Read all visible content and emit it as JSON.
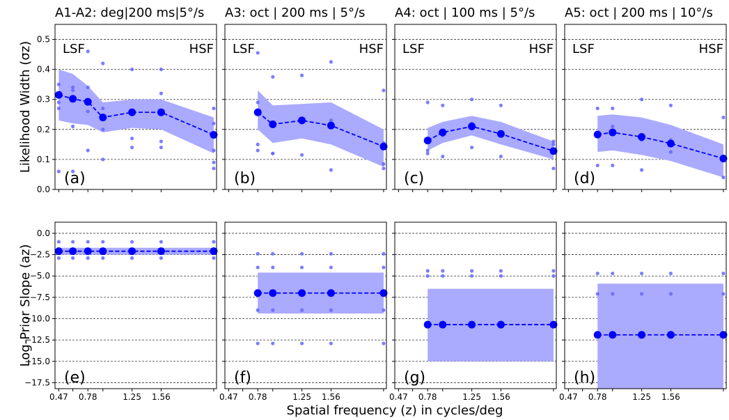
{
  "chart_data": {
    "type": "line",
    "xlabel": "Spatial frequency (z) in cycles/deg",
    "x_tick_labels": [
      "0.47",
      "0.78",
      "1.25",
      "1.56"
    ],
    "x_ticks": [
      0.47,
      0.78,
      1.25,
      1.56
    ],
    "xlim": [
      0.43,
      2.15
    ],
    "grid": "horizontal dashed",
    "colors": {
      "series": "#0000ff",
      "band": "#aaaaff",
      "raw_points": "#6666ff"
    },
    "rows": [
      {
        "ylabel": "Likelihood Width (σz)",
        "ylim": [
          0,
          0.55
        ],
        "y_tick_labels": [
          "0.0",
          "0.1",
          "0.2",
          "0.3",
          "0.4",
          "0.5"
        ],
        "y_ticks": [
          0,
          0.1,
          0.2,
          0.3,
          0.4,
          0.5
        ],
        "corner_labels": [
          "LSF",
          "HSF"
        ]
      },
      {
        "ylabel": "Log-Prior Slope (az)",
        "ylim": [
          -18.2,
          1.3
        ],
        "y_tick_labels": [
          "0.0",
          "−2.5",
          "−5.0",
          "−7.5",
          "−10.0",
          "−12.5",
          "−15.0",
          "−17.5"
        ],
        "y_ticks": [
          0,
          -2.5,
          -5,
          -7.5,
          -10,
          -12.5,
          -15,
          -17.5
        ]
      }
    ],
    "panels": [
      {
        "title": "A1-A2: deg|200 ms|5°/s",
        "label": "(a)",
        "row": 0,
        "col": 0,
        "x": [
          0.47,
          0.62,
          0.78,
          0.94,
          1.25,
          1.56,
          2.12
        ],
        "mean": [
          0.315,
          0.302,
          0.292,
          0.24,
          0.257,
          0.257,
          0.182
        ],
        "lower": [
          0.23,
          0.22,
          0.215,
          0.19,
          0.205,
          0.2,
          0.12
        ],
        "upper": [
          0.4,
          0.385,
          0.345,
          0.29,
          0.3,
          0.3,
          0.24
        ],
        "raw": [
          [
            0.47,
            0.35
          ],
          [
            0.47,
            0.29
          ],
          [
            0.47,
            0.27
          ],
          [
            0.47,
            0.06
          ],
          [
            0.62,
            0.34
          ],
          [
            0.62,
            0.33
          ],
          [
            0.62,
            0.21
          ],
          [
            0.62,
            0.06
          ],
          [
            0.78,
            0.46
          ],
          [
            0.78,
            0.34
          ],
          [
            0.78,
            0.29
          ],
          [
            0.78,
            0.26
          ],
          [
            0.78,
            0.13
          ],
          [
            0.94,
            0.42
          ],
          [
            0.94,
            0.27
          ],
          [
            0.94,
            0.2
          ],
          [
            0.94,
            0.1
          ],
          [
            1.25,
            0.4
          ],
          [
            1.25,
            0.26
          ],
          [
            1.25,
            0.17
          ],
          [
            1.25,
            0.14
          ],
          [
            1.56,
            0.4
          ],
          [
            1.56,
            0.32
          ],
          [
            1.56,
            0.16
          ],
          [
            1.56,
            0.14
          ],
          [
            2.12,
            0.27
          ],
          [
            2.12,
            0.22
          ],
          [
            2.12,
            0.13
          ],
          [
            2.12,
            0.09
          ],
          [
            2.12,
            0.07
          ]
        ]
      },
      {
        "title": "A3:  oct | 200 ms |  5°/s",
        "label": "(b)",
        "row": 0,
        "col": 1,
        "x": [
          0.78,
          0.94,
          1.25,
          1.56,
          2.12
        ],
        "mean": [
          0.257,
          0.217,
          0.23,
          0.213,
          0.143
        ],
        "lower": [
          0.2,
          0.155,
          0.17,
          0.15,
          0.075
        ],
        "upper": [
          0.33,
          0.28,
          0.285,
          0.29,
          0.2
        ],
        "raw": [
          [
            0.78,
            0.455
          ],
          [
            0.78,
            0.29
          ],
          [
            0.78,
            0.15
          ],
          [
            0.78,
            0.13
          ],
          [
            0.94,
            0.375
          ],
          [
            0.94,
            0.215
          ],
          [
            0.94,
            0.12
          ],
          [
            0.94,
            0.12
          ],
          [
            1.25,
            0.38
          ],
          [
            1.25,
            0.235
          ],
          [
            1.25,
            0.115
          ],
          [
            1.56,
            0.425
          ],
          [
            1.56,
            0.23
          ],
          [
            1.56,
            0.065
          ],
          [
            2.12,
            0.33
          ],
          [
            2.12,
            0.155
          ],
          [
            2.12,
            0.085
          ],
          [
            2.12,
            0.07
          ]
        ]
      },
      {
        "title": "A4:  oct | 100 ms |  5°/s",
        "label": "(c)",
        "row": 0,
        "col": 2,
        "x": [
          0.78,
          0.94,
          1.25,
          1.56,
          2.12
        ],
        "mean": [
          0.163,
          0.19,
          0.21,
          0.185,
          0.128
        ],
        "lower": [
          0.13,
          0.155,
          0.18,
          0.15,
          0.1
        ],
        "upper": [
          0.205,
          0.225,
          0.245,
          0.225,
          0.16
        ],
        "raw": [
          [
            0.78,
            0.29
          ],
          [
            0.78,
            0.13
          ],
          [
            0.78,
            0.12
          ],
          [
            0.94,
            0.28
          ],
          [
            0.94,
            0.18
          ],
          [
            0.94,
            0.11
          ],
          [
            1.25,
            0.3
          ],
          [
            1.25,
            0.22
          ],
          [
            1.25,
            0.14
          ],
          [
            1.56,
            0.28
          ],
          [
            1.56,
            0.19
          ],
          [
            1.56,
            0.11
          ],
          [
            2.12,
            0.16
          ],
          [
            2.12,
            0.15
          ],
          [
            2.12,
            0.07
          ]
        ]
      },
      {
        "title": "A5:  oct | 200 ms | 10°/s",
        "label": "(d)",
        "row": 0,
        "col": 3,
        "x": [
          0.78,
          0.94,
          1.25,
          1.56,
          2.12
        ],
        "mean": [
          0.183,
          0.19,
          0.175,
          0.153,
          0.103
        ],
        "lower": [
          0.125,
          0.13,
          0.115,
          0.095,
          0.04
        ],
        "upper": [
          0.245,
          0.25,
          0.24,
          0.215,
          0.15
        ],
        "raw": [
          [
            0.78,
            0.27
          ],
          [
            0.78,
            0.08
          ],
          [
            0.94,
            0.27
          ],
          [
            0.94,
            0.21
          ],
          [
            0.94,
            0.08
          ],
          [
            1.25,
            0.3
          ],
          [
            1.25,
            0.165
          ],
          [
            1.25,
            0.065
          ],
          [
            1.56,
            0.28
          ],
          [
            1.56,
            0.165
          ],
          [
            1.56,
            0.125
          ],
          [
            2.12,
            0.24
          ],
          [
            2.12,
            0.11
          ],
          [
            2.12,
            0.04
          ]
        ]
      },
      {
        "title": "",
        "label": "(e)",
        "row": 1,
        "col": 0,
        "x": [
          0.47,
          0.62,
          0.78,
          0.94,
          1.25,
          1.56,
          2.12
        ],
        "mean": [
          -2.1,
          -2.1,
          -2.1,
          -2.1,
          -2.1,
          -2.1,
          -2.1
        ],
        "lower": [
          -2.5,
          -2.5,
          -2.5,
          -2.5,
          -2.5,
          -2.5,
          -2.5
        ],
        "upper": [
          -1.7,
          -1.7,
          -1.7,
          -1.7,
          -1.7,
          -1.7,
          -1.7
        ],
        "raw": [
          [
            0.47,
            -1.0
          ],
          [
            0.47,
            -2.9
          ],
          [
            0.62,
            -1.0
          ],
          [
            0.62,
            -2.9
          ],
          [
            0.78,
            -1.0
          ],
          [
            0.78,
            -2.9
          ],
          [
            0.94,
            -1.0
          ],
          [
            0.94,
            -2.9
          ],
          [
            1.25,
            -1.0
          ],
          [
            1.25,
            -2.9
          ],
          [
            1.56,
            -1.0
          ],
          [
            1.56,
            -2.9
          ],
          [
            2.12,
            -1.0
          ],
          [
            2.12,
            -2.9
          ]
        ]
      },
      {
        "title": "",
        "label": "(f)",
        "row": 1,
        "col": 1,
        "x": [
          0.78,
          0.94,
          1.25,
          1.56,
          2.12
        ],
        "mean": [
          -7.0,
          -7.0,
          -7.0,
          -7.0,
          -7.0
        ],
        "lower": [
          -9.4,
          -9.4,
          -9.4,
          -9.4,
          -9.4
        ],
        "upper": [
          -4.6,
          -4.6,
          -4.6,
          -4.6,
          -4.6
        ],
        "raw": [
          [
            0.78,
            -2.4
          ],
          [
            0.78,
            -4.0
          ],
          [
            0.78,
            -7.0
          ],
          [
            0.78,
            -9.0
          ],
          [
            0.78,
            -12.9
          ],
          [
            0.94,
            -2.4
          ],
          [
            0.94,
            -4.0
          ],
          [
            0.94,
            -9.0
          ],
          [
            0.94,
            -12.9
          ],
          [
            1.25,
            -2.4
          ],
          [
            1.25,
            -4.0
          ],
          [
            1.25,
            -9.0
          ],
          [
            1.25,
            -12.9
          ],
          [
            1.56,
            -2.4
          ],
          [
            1.56,
            -4.0
          ],
          [
            1.56,
            -9.0
          ],
          [
            1.56,
            -12.9
          ],
          [
            2.12,
            -2.4
          ],
          [
            2.12,
            -4.0
          ],
          [
            2.12,
            -9.0
          ],
          [
            2.12,
            -12.9
          ]
        ]
      },
      {
        "title": "",
        "label": "(g)",
        "row": 1,
        "col": 2,
        "x": [
          0.78,
          0.94,
          1.25,
          1.56,
          2.12
        ],
        "mean": [
          -10.7,
          -10.7,
          -10.7,
          -10.7,
          -10.7
        ],
        "lower": [
          -15.0,
          -15.0,
          -15.0,
          -15.0,
          -15.0
        ],
        "upper": [
          -6.5,
          -6.5,
          -6.5,
          -6.5,
          -6.5
        ],
        "raw": [
          [
            0.78,
            -4.4
          ],
          [
            0.78,
            -5.0
          ],
          [
            0.94,
            -4.4
          ],
          [
            0.94,
            -5.0
          ],
          [
            1.25,
            -4.4
          ],
          [
            1.25,
            -5.0
          ],
          [
            1.56,
            -4.4
          ],
          [
            1.56,
            -5.0
          ],
          [
            2.12,
            -4.4
          ],
          [
            2.12,
            -5.0
          ]
        ]
      },
      {
        "title": "",
        "label": "(h)",
        "row": 1,
        "col": 3,
        "x": [
          0.78,
          0.94,
          1.25,
          1.56,
          2.12
        ],
        "mean": [
          -11.9,
          -11.9,
          -11.9,
          -11.9,
          -11.9
        ],
        "lower": [
          -18.2,
          -18.2,
          -18.2,
          -18.2,
          -18.2
        ],
        "upper": [
          -5.9,
          -5.9,
          -5.9,
          -5.9,
          -5.9
        ],
        "raw": [
          [
            0.78,
            -4.7
          ],
          [
            0.78,
            -7.1
          ],
          [
            0.94,
            -4.7
          ],
          [
            0.94,
            -7.1
          ],
          [
            1.25,
            -4.7
          ],
          [
            1.25,
            -7.1
          ],
          [
            1.56,
            -4.7
          ],
          [
            1.56,
            -7.1
          ],
          [
            2.12,
            -4.7
          ],
          [
            2.12,
            -7.1
          ]
        ]
      }
    ]
  }
}
